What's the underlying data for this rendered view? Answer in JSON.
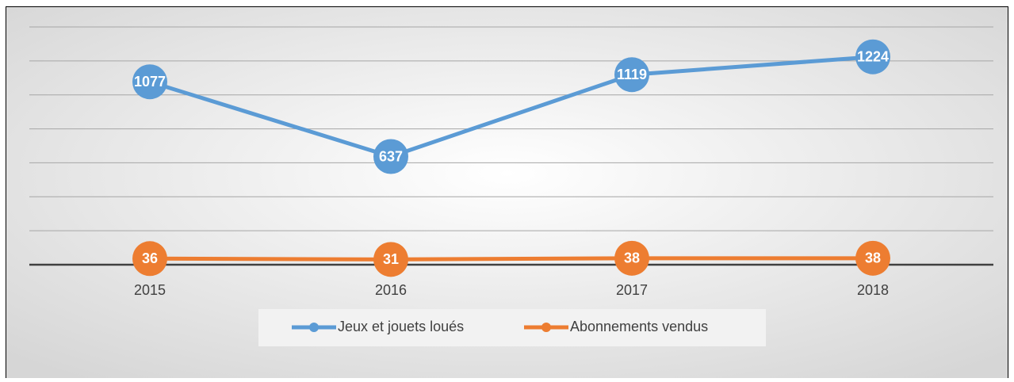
{
  "chart_data": {
    "type": "line",
    "categories": [
      "2015",
      "2016",
      "2017",
      "2018"
    ],
    "series": [
      {
        "name": "Jeux et jouets loués",
        "color": "#5b9bd5",
        "values": [
          1077,
          637,
          1119,
          1224
        ]
      },
      {
        "name": "Abonnements vendus",
        "color": "#ed7d31",
        "values": [
          36,
          31,
          38,
          38
        ]
      }
    ],
    "ylim": [
      0,
      1400
    ],
    "yticks": [
      0,
      200,
      400,
      600,
      800,
      1000,
      1200,
      1400
    ],
    "grid": true,
    "legend": "bottom"
  }
}
